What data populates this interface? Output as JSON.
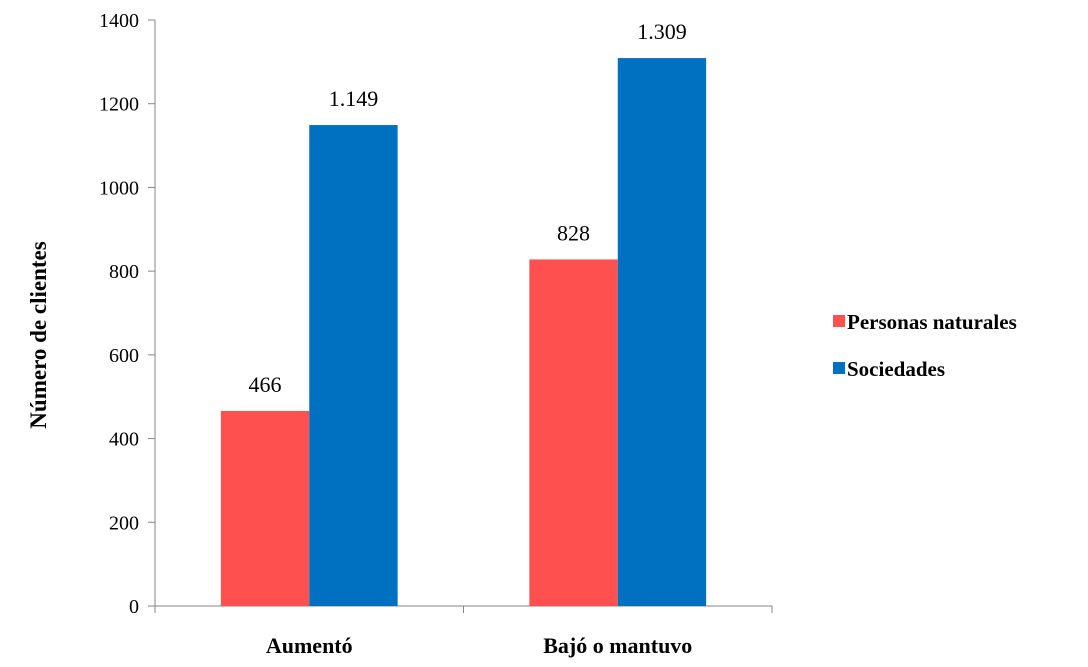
{
  "chart_data": {
    "type": "bar",
    "categories": [
      "Aumentó",
      "Bajó o mantuvo"
    ],
    "series": [
      {
        "name": "Personas naturales",
        "values": [
          466,
          828
        ],
        "labels": [
          "466",
          "828"
        ],
        "color": "#ff5050"
      },
      {
        "name": "Sociedades",
        "values": [
          1149,
          1309
        ],
        "labels": [
          "1.149",
          "1.309"
        ],
        "color": "#0070c0"
      }
    ],
    "ylabel": "Número de clientes",
    "xlabel": "",
    "ylim": [
      0,
      1400
    ],
    "yticks": [
      0,
      200,
      400,
      600,
      800,
      1000,
      1200,
      1400
    ],
    "grid": false,
    "legend": "right"
  }
}
